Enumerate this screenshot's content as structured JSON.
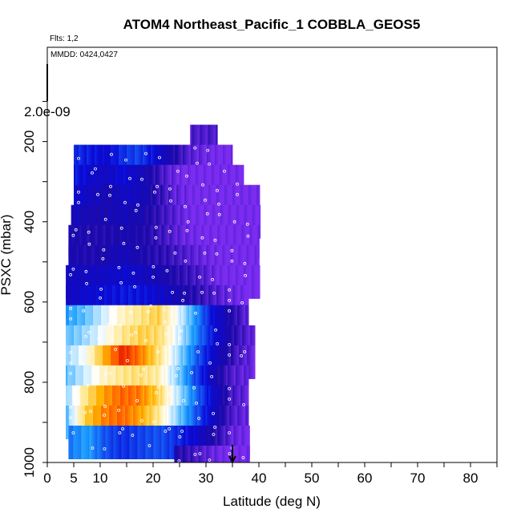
{
  "chart_data": {
    "type": "heatmap",
    "title": "ATOM4 Northeast_Pacific_1 COBBLA_GEOS5",
    "annotations": {
      "flights": "Flts: 1,2",
      "dates": "MMDD: 0424,0427"
    },
    "color_scale_label": "2.0e-09",
    "xlabel": "Latitude (deg N)",
    "ylabel": "PSXC (mbar)",
    "xlim": [
      0,
      85
    ],
    "ylim": [
      1000,
      0
    ],
    "x_ticks": [
      0,
      5,
      10,
      20,
      30,
      40,
      50,
      60,
      70,
      80
    ],
    "y_ticks": [
      200,
      400,
      600,
      800,
      1000
    ],
    "colormap": [
      "#7b2cf0",
      "#1c0aa6",
      "#0a0ad8",
      "#1450f0",
      "#1ea0ff",
      "#9ad8ff",
      "#ffffff",
      "#ffe890",
      "#ffb400",
      "#ff5000",
      "#d00000"
    ],
    "rows": [
      {
        "p": 200,
        "x0": 27,
        "x1": 32,
        "v": [
          0.05,
          0.05,
          0.05
        ]
      },
      {
        "p": 250,
        "x0": 5,
        "x1": 35,
        "v": [
          0.25,
          0.22,
          0.18,
          0.25,
          0.28,
          0.2,
          0.12,
          0.05,
          0.02,
          0.0,
          0.0
        ]
      },
      {
        "p": 300,
        "x0": 5,
        "x1": 37,
        "v": [
          0.22,
          0.18,
          0.15,
          0.2,
          0.16,
          0.1,
          0.04,
          0.0,
          0.0,
          0.0,
          0.0,
          0.0
        ]
      },
      {
        "p": 350,
        "x0": 5,
        "x1": 40,
        "v": [
          0.18,
          0.15,
          0.12,
          0.16,
          0.14,
          0.08,
          0.03,
          0.0,
          0.0,
          0.0,
          0.0,
          0.0
        ]
      },
      {
        "p": 400,
        "x0": 4.5,
        "x1": 40,
        "v": [
          0.15,
          0.12,
          0.12,
          0.14,
          0.12,
          0.08,
          0.04,
          0.0,
          0.0,
          0.0,
          0.0,
          0.0
        ]
      },
      {
        "p": 450,
        "x0": 4,
        "x1": 40,
        "v": [
          0.12,
          0.1,
          0.1,
          0.12,
          0.1,
          0.06,
          0.02,
          0.0,
          0.0,
          0.0,
          0.0
        ]
      },
      {
        "p": 500,
        "x0": 4,
        "x1": 40,
        "v": [
          0.12,
          0.1,
          0.12,
          0.14,
          0.1,
          0.08,
          0.05,
          0.02,
          0.0,
          0.0,
          0.0
        ]
      },
      {
        "p": 550,
        "x0": 3.5,
        "x1": 40,
        "v": [
          0.15,
          0.15,
          0.16,
          0.18,
          0.15,
          0.12,
          0.08,
          0.05,
          0.0,
          0.0,
          0.0
        ]
      },
      {
        "p": 600,
        "x0": 3.5,
        "x1": 38,
        "v": [
          0.15,
          0.18,
          0.2,
          0.22,
          0.2,
          0.15,
          0.1,
          0.06,
          0.02,
          0.0
        ]
      },
      {
        "p": 650,
        "x0": 3.5,
        "x1": 38,
        "v": [
          0.4,
          0.45,
          0.55,
          0.65,
          0.7,
          0.75,
          0.6,
          0.4,
          0.2,
          0.1,
          0.02
        ]
      },
      {
        "p": 700,
        "x0": 3.5,
        "x1": 39,
        "v": [
          0.45,
          0.5,
          0.6,
          0.7,
          0.75,
          0.72,
          0.55,
          0.35,
          0.18,
          0.08,
          0.02
        ]
      },
      {
        "p": 750,
        "x0": 3.5,
        "x1": 39,
        "v": [
          0.5,
          0.6,
          0.8,
          0.95,
          0.85,
          0.7,
          0.5,
          0.3,
          0.15,
          0.06,
          0.02
        ]
      },
      {
        "p": 800,
        "x0": 3.5,
        "x1": 38,
        "v": [
          0.45,
          0.55,
          0.65,
          0.7,
          0.72,
          0.68,
          0.5,
          0.3,
          0.14,
          0.05,
          0.02
        ]
      },
      {
        "p": 850,
        "x0": 3.5,
        "x1": 38,
        "v": [
          0.5,
          0.7,
          0.82,
          0.88,
          0.86,
          0.75,
          0.55,
          0.35,
          0.18,
          0.06,
          0.02
        ]
      },
      {
        "p": 900,
        "x0": 3.5,
        "x1": 38,
        "v": [
          0.45,
          0.75,
          0.85,
          0.88,
          0.82,
          0.7,
          0.5,
          0.32,
          0.16,
          0.05,
          0.02
        ]
      },
      {
        "p": 950,
        "x0": 4,
        "x1": 38,
        "v": [
          0.35,
          0.4,
          0.3,
          0.25,
          0.28,
          0.3,
          0.25,
          0.18,
          0.1,
          0.03,
          0.0
        ]
      },
      {
        "p": 1000,
        "x0": 24,
        "x1": 38,
        "v": [
          0.1,
          0.05,
          0.0,
          0.0
        ]
      }
    ]
  }
}
